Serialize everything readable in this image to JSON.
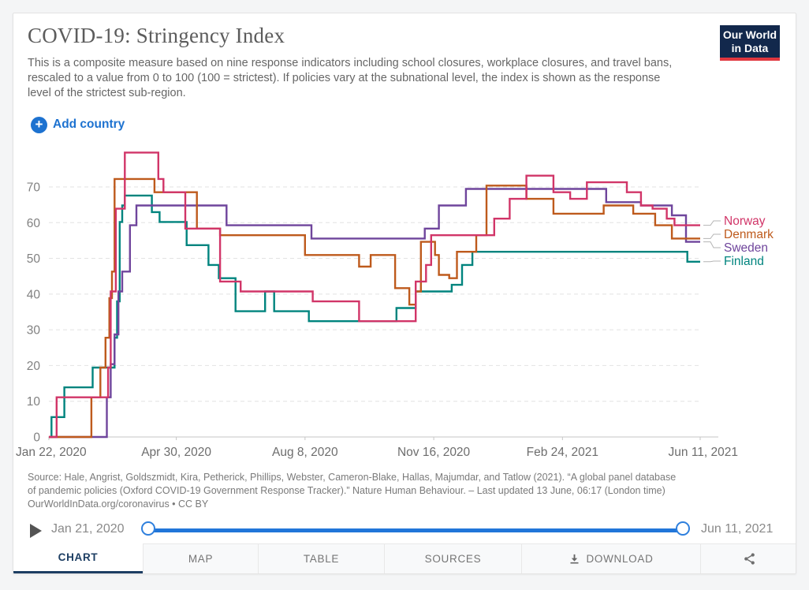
{
  "header": {
    "title": "COVID-19: Stringency Index",
    "subtitle": "This is a composite measure based on nine response indicators including school closures, workplace closures, and travel bans, rescaled to a value from 0 to 100 (100 = strictest). If policies vary at the subnational level, the index is shown as the response level of the strictest sub-region.",
    "logo_line1": "Our World",
    "logo_line2": "in Data"
  },
  "controls": {
    "add_country_label": "Add country",
    "plus_glyph": "+",
    "accent_blue": "#1d72d0"
  },
  "chart_data": {
    "type": "line",
    "step": true,
    "title": "COVID-19: Stringency Index",
    "xlabel": "",
    "ylabel": "",
    "grid": "dashed-horizontal",
    "legend_position": "right-of-lines",
    "ylim": [
      0,
      80
    ],
    "yticks": [
      0,
      10,
      20,
      30,
      40,
      50,
      60,
      70
    ],
    "x_range": [
      "2020-01-22",
      "2021-06-11"
    ],
    "xticks": [
      {
        "date": "2020-01-22",
        "label": "Jan 22, 2020"
      },
      {
        "date": "2020-04-30",
        "label": "Apr 30, 2020"
      },
      {
        "date": "2020-08-08",
        "label": "Aug 8, 2020"
      },
      {
        "date": "2020-11-16",
        "label": "Nov 16, 2020"
      },
      {
        "date": "2021-02-24",
        "label": "Feb 24, 2021"
      },
      {
        "date": "2021-06-11",
        "label": "Jun 11, 2021"
      }
    ],
    "series": [
      {
        "name": "Norway",
        "color": "#d13568",
        "points": [
          [
            "2020-01-22",
            0
          ],
          [
            "2020-01-28",
            11.11
          ],
          [
            "2020-03-08",
            19.44
          ],
          [
            "2020-03-10",
            40.74
          ],
          [
            "2020-03-14",
            63.89
          ],
          [
            "2020-03-21",
            79.63
          ],
          [
            "2020-04-16",
            72.22
          ],
          [
            "2020-04-20",
            68.52
          ],
          [
            "2020-05-07",
            58.33
          ],
          [
            "2020-06-03",
            43.52
          ],
          [
            "2020-06-19",
            40.74
          ],
          [
            "2020-08-14",
            37.96
          ],
          [
            "2020-09-19",
            32.41
          ],
          [
            "2020-11-02",
            43.52
          ],
          [
            "2020-11-10",
            48.15
          ],
          [
            "2020-11-14",
            56.48
          ],
          [
            "2021-01-02",
            61.11
          ],
          [
            "2021-01-14",
            66.67
          ],
          [
            "2021-01-27",
            73.15
          ],
          [
            "2021-02-17",
            68.52
          ],
          [
            "2021-03-02",
            66.67
          ],
          [
            "2021-03-15",
            71.3
          ],
          [
            "2021-04-15",
            68.52
          ],
          [
            "2021-04-26",
            64.81
          ],
          [
            "2021-05-05",
            63.89
          ],
          [
            "2021-05-16",
            61.11
          ],
          [
            "2021-05-22",
            59.26
          ],
          [
            "2021-06-11",
            59.26
          ]
        ]
      },
      {
        "name": "Denmark",
        "color": "#be5a1c",
        "points": [
          [
            "2020-01-22",
            0
          ],
          [
            "2020-02-24",
            11.11
          ],
          [
            "2020-03-02",
            19.44
          ],
          [
            "2020-03-06",
            27.78
          ],
          [
            "2020-03-09",
            38.89
          ],
          [
            "2020-03-11",
            46.3
          ],
          [
            "2020-03-13",
            72.22
          ],
          [
            "2020-04-13",
            68.52
          ],
          [
            "2020-05-16",
            58.33
          ],
          [
            "2020-06-03",
            56.48
          ],
          [
            "2020-08-08",
            50.93
          ],
          [
            "2020-09-19",
            47.69
          ],
          [
            "2020-09-28",
            50.93
          ],
          [
            "2020-10-17",
            41.67
          ],
          [
            "2020-10-28",
            37.04
          ],
          [
            "2020-11-02",
            40.74
          ],
          [
            "2020-11-06",
            54.63
          ],
          [
            "2020-11-17",
            50.93
          ],
          [
            "2020-11-20",
            45.37
          ],
          [
            "2020-11-28",
            44.44
          ],
          [
            "2020-12-04",
            51.85
          ],
          [
            "2020-12-19",
            56.48
          ],
          [
            "2020-12-27",
            70.37
          ],
          [
            "2021-01-27",
            66.67
          ],
          [
            "2021-02-17",
            62.5
          ],
          [
            "2021-03-28",
            64.81
          ],
          [
            "2021-04-20",
            62.5
          ],
          [
            "2021-05-07",
            59.26
          ],
          [
            "2021-05-20",
            55.56
          ],
          [
            "2021-06-11",
            55.56
          ]
        ]
      },
      {
        "name": "Sweden",
        "color": "#6f459c",
        "points": [
          [
            "2020-01-22",
            0
          ],
          [
            "2020-03-07",
            11.11
          ],
          [
            "2020-03-10",
            20.37
          ],
          [
            "2020-03-13",
            28.7
          ],
          [
            "2020-03-16",
            40.74
          ],
          [
            "2020-03-19",
            46.3
          ],
          [
            "2020-03-25",
            59.26
          ],
          [
            "2020-03-30",
            64.81
          ],
          [
            "2020-06-08",
            59.26
          ],
          [
            "2020-08-13",
            55.56
          ],
          [
            "2020-11-09",
            58.33
          ],
          [
            "2020-11-20",
            64.81
          ],
          [
            "2020-12-11",
            69.44
          ],
          [
            "2021-03-30",
            65.74
          ],
          [
            "2021-04-26",
            64.81
          ],
          [
            "2021-05-20",
            62.04
          ],
          [
            "2021-05-31",
            54.63
          ],
          [
            "2021-06-11",
            54.63
          ]
        ]
      },
      {
        "name": "Finland",
        "color": "#00847e",
        "points": [
          [
            "2020-01-22",
            0
          ],
          [
            "2020-01-24",
            5.56
          ],
          [
            "2020-02-03",
            13.89
          ],
          [
            "2020-02-25",
            19.44
          ],
          [
            "2020-03-13",
            27.78
          ],
          [
            "2020-03-15",
            37.96
          ],
          [
            "2020-03-17",
            60.19
          ],
          [
            "2020-03-19",
            64.81
          ],
          [
            "2020-03-21",
            67.59
          ],
          [
            "2020-04-11",
            62.96
          ],
          [
            "2020-04-17",
            60.19
          ],
          [
            "2020-05-08",
            53.7
          ],
          [
            "2020-05-25",
            48.15
          ],
          [
            "2020-06-02",
            44.44
          ],
          [
            "2020-06-15",
            35.19
          ],
          [
            "2020-07-08",
            40.74
          ],
          [
            "2020-07-15",
            35.19
          ],
          [
            "2020-08-11",
            32.41
          ],
          [
            "2020-10-18",
            36.11
          ],
          [
            "2020-11-02",
            40.74
          ],
          [
            "2020-11-30",
            42.59
          ],
          [
            "2020-12-08",
            48.15
          ],
          [
            "2020-12-16",
            51.85
          ],
          [
            "2021-06-01",
            49.07
          ],
          [
            "2021-06-11",
            49.07
          ]
        ]
      }
    ]
  },
  "source": {
    "line1": "Source: Hale, Angrist, Goldszmidt, Kira, Petherick, Phillips, Webster, Cameron-Blake, Hallas, Majumdar, and Tatlow (2021). “A global panel database",
    "line2": "of pandemic policies (Oxford COVID-19 Government Response Tracker).” Nature Human Behaviour. – Last updated 13 June, 06:17 (London time)",
    "line3": "OurWorldInData.org/coronavirus • CC BY"
  },
  "timeline": {
    "start_label": "Jan 21, 2020",
    "end_label": "Jun 11, 2021"
  },
  "tabs": {
    "chart": "CHART",
    "map": "MAP",
    "table": "TABLE",
    "sources": "SOURCES",
    "download": "DOWNLOAD"
  }
}
